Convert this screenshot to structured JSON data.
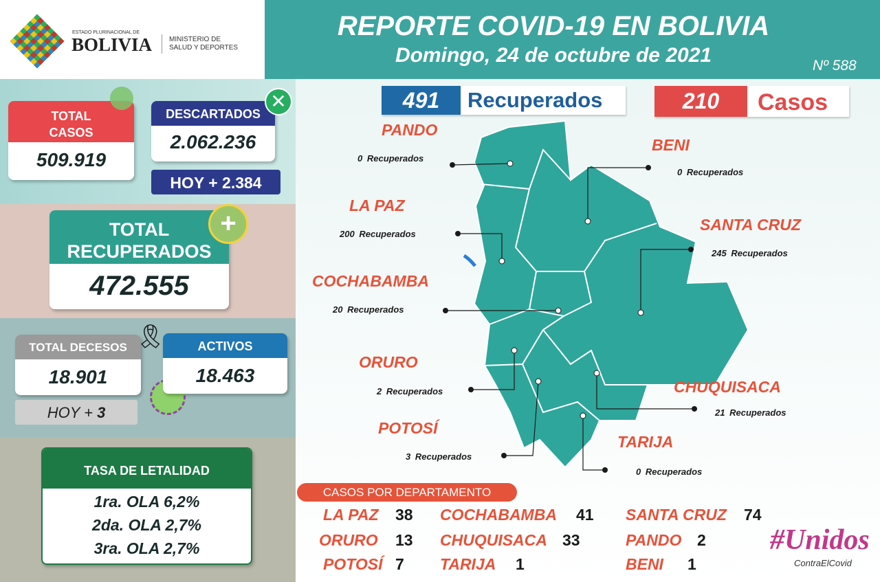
{
  "header": {
    "logo_top": "ESTADO PLURINACIONAL DE",
    "logo_name": "BOLIVIA",
    "ministry_1": "MINISTERIO DE",
    "ministry_2": "SALUD Y DEPORTES",
    "title": "REPORTE COVID-19 EN BOLIVIA",
    "date": "Domingo, 24 de octubre de 2021",
    "number": "Nº 588"
  },
  "summary": {
    "recovered_value": "491",
    "recovered_label": "Recuperados",
    "cases_value": "210",
    "cases_label": "Casos"
  },
  "stats": {
    "total_cases_label": "TOTAL CASOS",
    "total_cases": "509.919",
    "discarded_label": "DESCARTADOS",
    "discarded": "2.062.236",
    "discarded_today": "HOY + 2.384",
    "total_recovered_label": "TOTAL RECUPERADOS",
    "total_recovered": "472.555",
    "deaths_label": "TOTAL DECESOS",
    "deaths": "18.901",
    "deaths_today_label": "HOY +",
    "deaths_today": "3",
    "active_label": "ACTIVOS",
    "active": "18.463"
  },
  "lethality": {
    "title": "TASA DE LETALIDAD",
    "rows": [
      "1ra. OLA 6,2%",
      "2da. OLA 2,7%",
      "3ra. OLA 2,7%"
    ]
  },
  "map": {
    "unit": "Recuperados",
    "departments": [
      {
        "name": "PANDO",
        "value": "0"
      },
      {
        "name": "BENI",
        "value": "0"
      },
      {
        "name": "LA PAZ",
        "value": "200"
      },
      {
        "name": "SANTA CRUZ",
        "value": "245"
      },
      {
        "name": "COCHABAMBA",
        "value": "20"
      },
      {
        "name": "ORURO",
        "value": "2"
      },
      {
        "name": "CHUQUISACA",
        "value": "21"
      },
      {
        "name": "POTOSÍ",
        "value": "3"
      },
      {
        "name": "TARIJA",
        "value": "0"
      }
    ]
  },
  "cases_by_department": {
    "title": "CASOS POR DEPARTAMENTO",
    "rows": [
      {
        "name": "LA PAZ",
        "value": "38"
      },
      {
        "name": "COCHABAMBA",
        "value": "41"
      },
      {
        "name": "SANTA CRUZ",
        "value": "74"
      },
      {
        "name": "ORURO",
        "value": "13"
      },
      {
        "name": "CHUQUISACA",
        "value": "33"
      },
      {
        "name": "PANDO",
        "value": "2"
      },
      {
        "name": "POTOSÍ",
        "value": "7"
      },
      {
        "name": "TARIJA",
        "value": "1"
      },
      {
        "name": "BENI",
        "value": "1"
      }
    ]
  },
  "footer": {
    "hashtag": "#Unidos",
    "sub": "ContraElCovid"
  }
}
